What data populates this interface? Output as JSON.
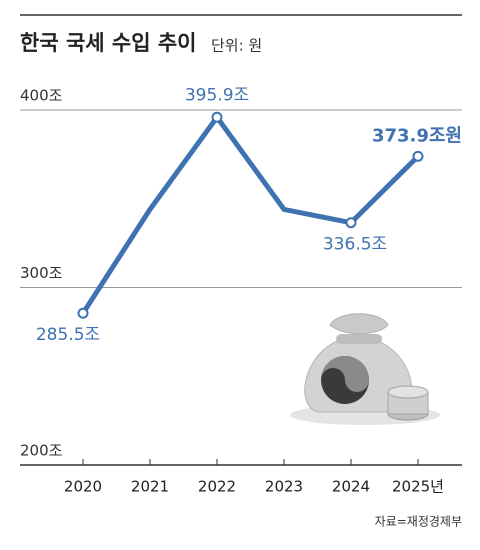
{
  "chart_data": {
    "type": "line",
    "title": "한국 국세 수입 추이",
    "subtitle": "단위: 원",
    "source": "자료=재정경제부",
    "categories": [
      "2020",
      "2021",
      "2022",
      "2023",
      "2024",
      "2025년"
    ],
    "values": [
      285.5,
      344,
      395.9,
      344,
      336.5,
      373.9
    ],
    "value_labels": [
      "285.5조",
      null,
      "395.9조",
      null,
      "336.5조",
      "373.9조원"
    ],
    "color": "#3f72b0",
    "ylim": [
      200,
      400
    ],
    "yticks": [
      {
        "value": 200,
        "label": "200조"
      },
      {
        "value": 300,
        "label": "300조"
      },
      {
        "value": 400,
        "label": "400조"
      }
    ],
    "grid": true
  }
}
